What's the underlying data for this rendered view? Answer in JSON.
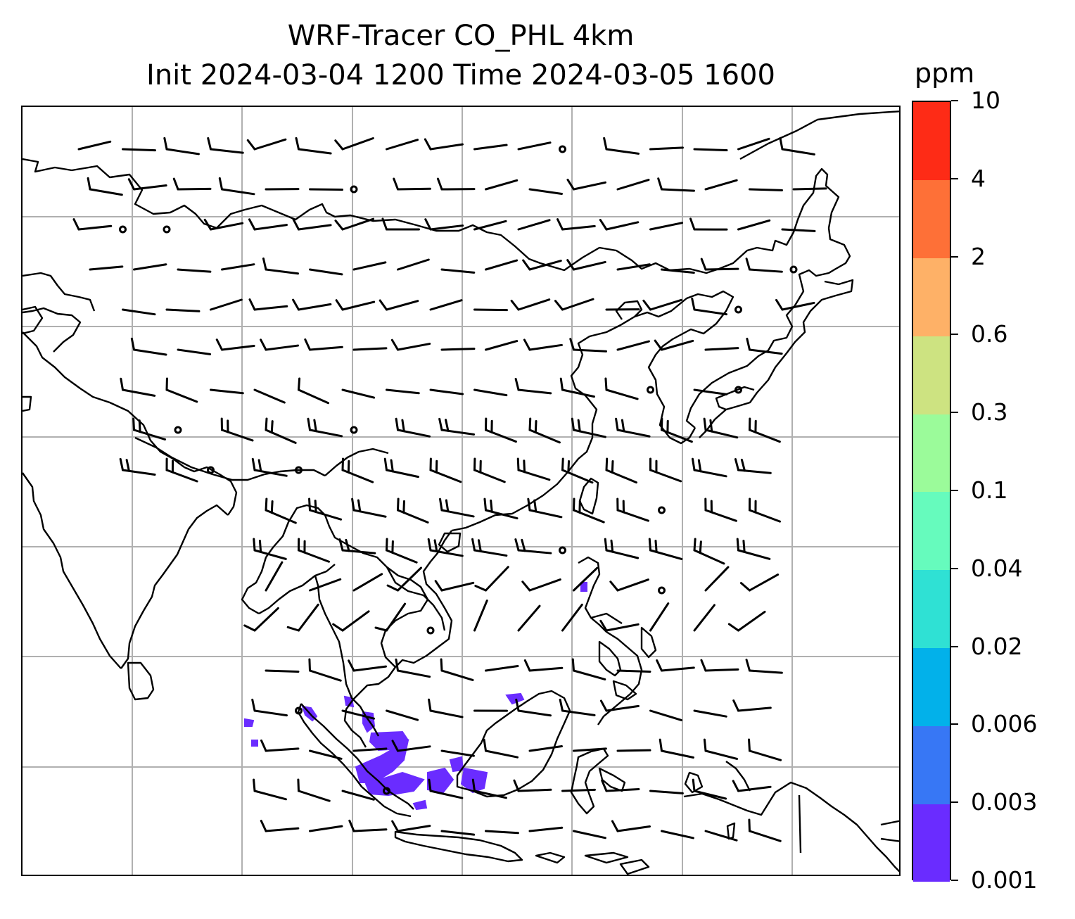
{
  "title": {
    "line1": "WRF-Tracer CO_PHL 4km",
    "line2": "Init 2024-03-04 1200 Time 2024-03-05 1600"
  },
  "colorbar": {
    "units": "ppm",
    "levels": [
      "0.001",
      "0.003",
      "0.006",
      "0.02",
      "0.04",
      "0.1",
      "0.3",
      "0.6",
      "2",
      "4",
      "10"
    ],
    "colors": [
      "#6a2cff",
      "#3777f5",
      "#02b1ea",
      "#2fe1d4",
      "#66fbbd",
      "#9bfb9a",
      "#cde381",
      "#feb167",
      "#fe7037",
      "#fe2b16"
    ]
  },
  "map": {
    "gridlines": true,
    "coastline_color": "#000000",
    "tracer_color": "#6a2cff",
    "wind_barb_color": "#000000"
  }
}
